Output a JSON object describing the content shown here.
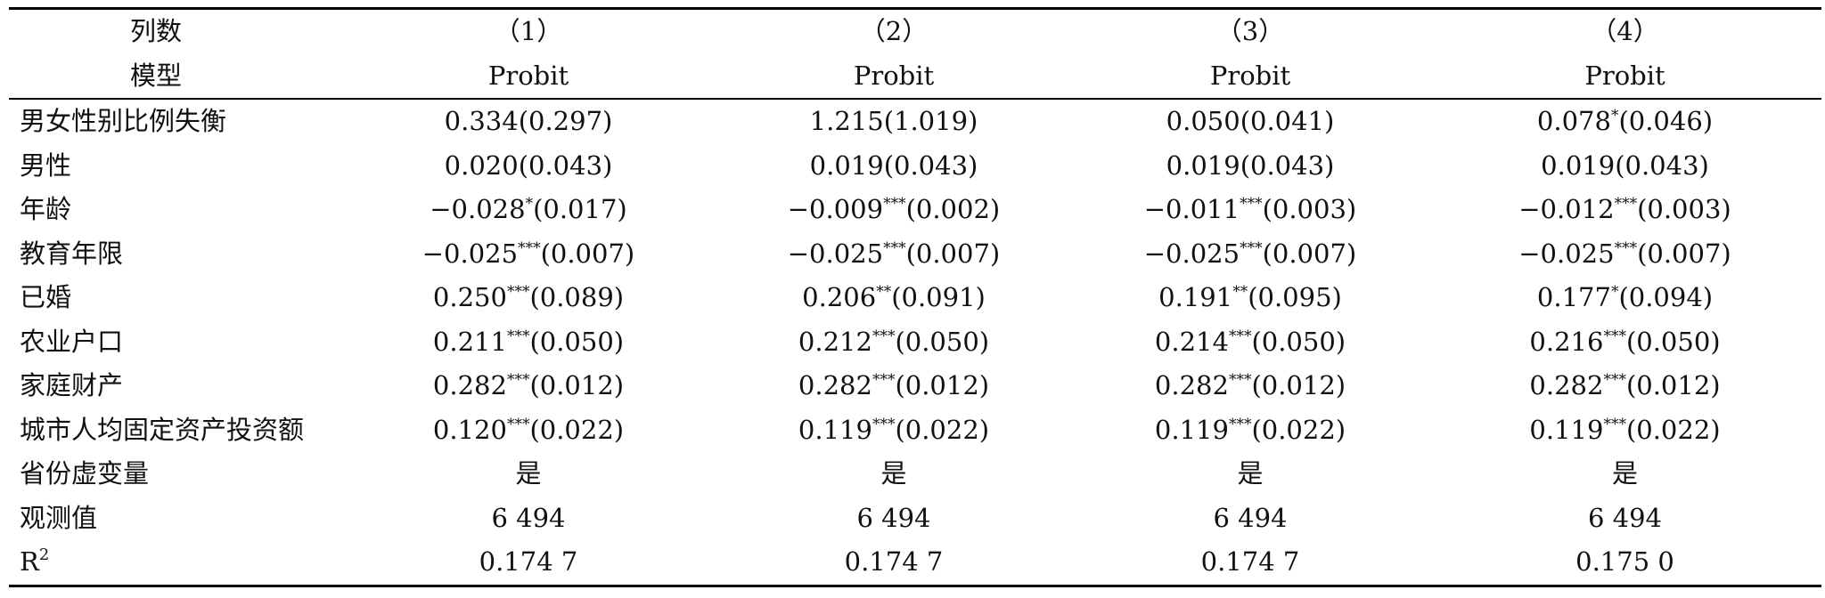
{
  "header": {
    "columns_label": "列数",
    "model_label": "模型",
    "columns": [
      "（1）",
      "（2）",
      "（3）",
      "（4）"
    ],
    "models": [
      "Probit",
      "Probit",
      "Probit",
      "Probit"
    ]
  },
  "rows": [
    {
      "label": "男女性别比例失衡",
      "cells": [
        {
          "coef": "0.334",
          "stars": "",
          "se": "(0.297)"
        },
        {
          "coef": "1.215",
          "stars": "",
          "se": "(1.019)"
        },
        {
          "coef": "0.050",
          "stars": "",
          "se": "(0.041)"
        },
        {
          "coef": "0.078",
          "stars": "*",
          "se": "(0.046)"
        }
      ]
    },
    {
      "label": "男性",
      "cells": [
        {
          "coef": "0.020",
          "stars": "",
          "se": "(0.043)"
        },
        {
          "coef": "0.019",
          "stars": "",
          "se": "(0.043)"
        },
        {
          "coef": "0.019",
          "stars": "",
          "se": "(0.043)"
        },
        {
          "coef": "0.019",
          "stars": "",
          "se": "(0.043)"
        }
      ]
    },
    {
      "label": "年龄",
      "cells": [
        {
          "coef": "−0.028",
          "stars": "*",
          "se": "(0.017)"
        },
        {
          "coef": "−0.009",
          "stars": "***",
          "se": "(0.002)"
        },
        {
          "coef": "−0.011",
          "stars": "***",
          "se": "(0.003)"
        },
        {
          "coef": "−0.012",
          "stars": "***",
          "se": "(0.003)"
        }
      ]
    },
    {
      "label": "教育年限",
      "cells": [
        {
          "coef": "−0.025",
          "stars": "***",
          "se": "(0.007)"
        },
        {
          "coef": "−0.025",
          "stars": "***",
          "se": "(0.007)"
        },
        {
          "coef": "−0.025",
          "stars": "***",
          "se": "(0.007)"
        },
        {
          "coef": "−0.025",
          "stars": "***",
          "se": "(0.007)"
        }
      ]
    },
    {
      "label": "已婚",
      "cells": [
        {
          "coef": "0.250",
          "stars": "***",
          "se": "(0.089)"
        },
        {
          "coef": "0.206",
          "stars": "**",
          "se": "(0.091)"
        },
        {
          "coef": "0.191",
          "stars": "**",
          "se": "(0.095)"
        },
        {
          "coef": "0.177",
          "stars": "*",
          "se": "(0.094)"
        }
      ]
    },
    {
      "label": "农业户口",
      "cells": [
        {
          "coef": "0.211",
          "stars": "***",
          "se": "(0.050)"
        },
        {
          "coef": "0.212",
          "stars": "***",
          "se": "(0.050)"
        },
        {
          "coef": "0.214",
          "stars": "***",
          "se": "(0.050)"
        },
        {
          "coef": "0.216",
          "stars": "***",
          "se": "(0.050)"
        }
      ]
    },
    {
      "label": "家庭财产",
      "cells": [
        {
          "coef": "0.282",
          "stars": "***",
          "se": "(0.012)"
        },
        {
          "coef": "0.282",
          "stars": "***",
          "se": "(0.012)"
        },
        {
          "coef": "0.282",
          "stars": "***",
          "se": "(0.012)"
        },
        {
          "coef": "0.282",
          "stars": "***",
          "se": "(0.012)"
        }
      ]
    },
    {
      "label": "城市人均固定资产投资额",
      "cells": [
        {
          "coef": "0.120",
          "stars": "***",
          "se": "(0.022)"
        },
        {
          "coef": "0.119",
          "stars": "***",
          "se": "(0.022)"
        },
        {
          "coef": "0.119",
          "stars": "***",
          "se": "(0.022)"
        },
        {
          "coef": "0.119",
          "stars": "***",
          "se": "(0.022)"
        }
      ]
    }
  ],
  "footer": {
    "province_label": "省份虚变量",
    "province_values": [
      "是",
      "是",
      "是",
      "是"
    ],
    "obs_label": "观测值",
    "obs_values": [
      "6 494",
      "6 494",
      "6 494",
      "6 494"
    ],
    "r2_label": "R",
    "r2_sup": "2",
    "r2_values": [
      "0.174 7",
      "0.174 7",
      "0.174 7",
      "0.175 0"
    ]
  }
}
